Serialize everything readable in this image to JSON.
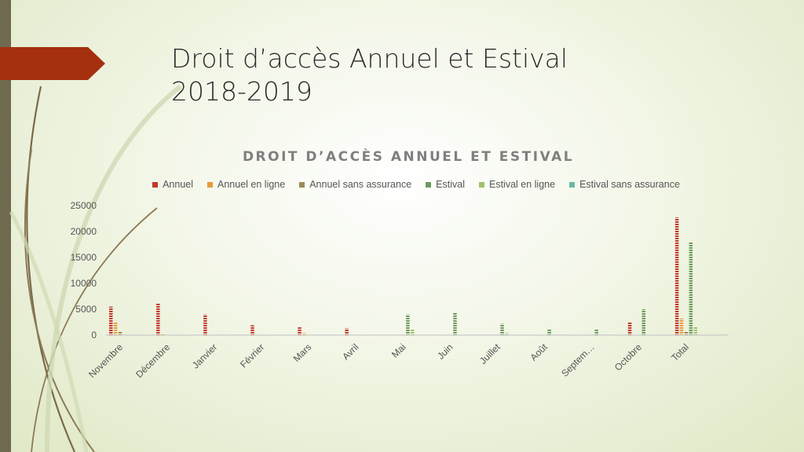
{
  "slide": {
    "title_line1": "Droit d’accès Annuel et Estival",
    "title_line2": "2018-2019"
  },
  "colors": {
    "accent_tab": "#a5300f",
    "left_bar": "#6f6a4f"
  },
  "chart_data": {
    "type": "bar",
    "title": "DROIT D’ACCÈS ANNUEL ET ESTIVAL",
    "xlabel": "",
    "ylabel": "",
    "ylim": [
      0,
      25000
    ],
    "yticks": [
      0,
      5000,
      10000,
      15000,
      20000,
      25000
    ],
    "legend_position": "top",
    "grid": false,
    "categories": [
      "Novembre",
      "Décembre",
      "Janvier",
      "Février",
      "Mars",
      "Avril",
      "Mai",
      "Juin",
      "Juillet",
      "Août",
      "Septem…",
      "Octobre",
      "Total"
    ],
    "series": [
      {
        "name": "Annuel",
        "color": "#c0392b",
        "values": [
          5500,
          6200,
          4000,
          1900,
          1500,
          1300,
          0,
          0,
          0,
          0,
          0,
          2500,
          22700
        ]
      },
      {
        "name": "Annuel en ligne",
        "color": "#e89a3c",
        "values": [
          2600,
          200,
          0,
          0,
          400,
          0,
          0,
          0,
          0,
          0,
          0,
          0,
          3200
        ]
      },
      {
        "name": "Annuel sans assurance",
        "color": "#9c8a5a",
        "values": [
          600,
          0,
          0,
          0,
          0,
          0,
          0,
          0,
          0,
          0,
          0,
          0,
          700
        ]
      },
      {
        "name": "Estival",
        "color": "#6d9a5a",
        "values": [
          0,
          0,
          0,
          0,
          0,
          0,
          4000,
          4300,
          2200,
          1200,
          1200,
          5000,
          18000
        ]
      },
      {
        "name": "Estival en ligne",
        "color": "#9fc26a",
        "values": [
          0,
          0,
          0,
          0,
          0,
          0,
          1100,
          0,
          400,
          0,
          0,
          0,
          1600
        ]
      },
      {
        "name": "Estival sans assurance",
        "color": "#6bb7a3",
        "values": [
          0,
          0,
          0,
          0,
          0,
          0,
          0,
          0,
          0,
          0,
          0,
          0,
          0
        ]
      }
    ]
  }
}
